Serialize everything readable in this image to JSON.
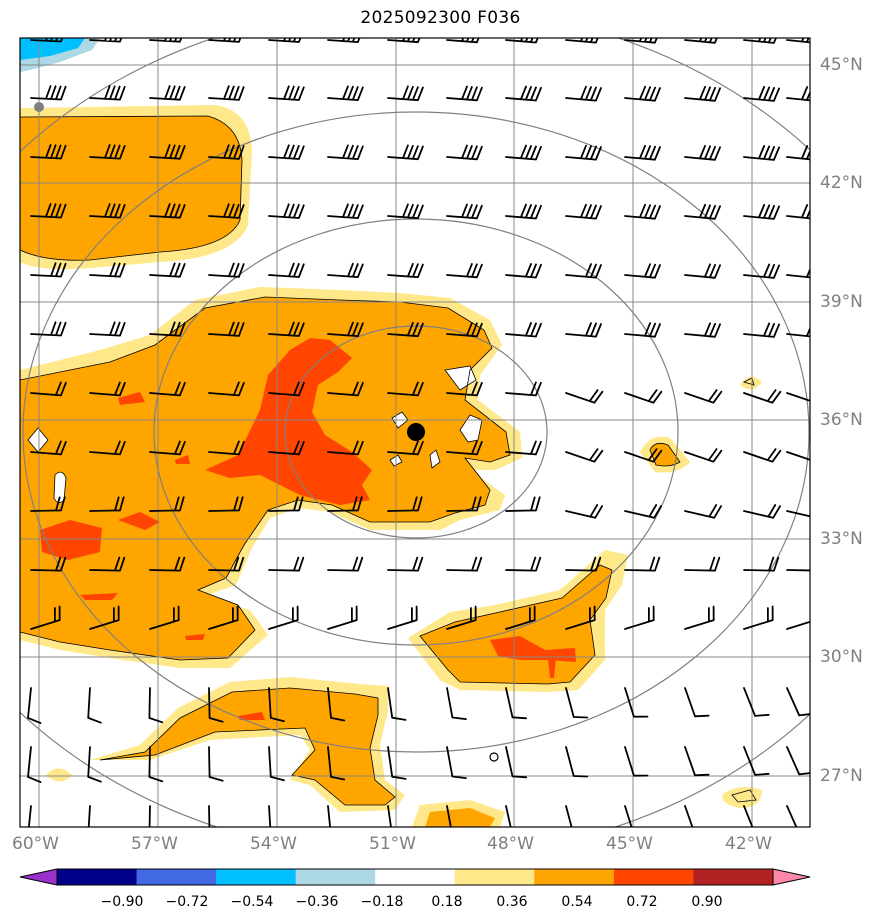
{
  "title": "2025092300 F036",
  "lat_labels": [
    "45°N",
    "42°N",
    "39°N",
    "36°N",
    "33°N",
    "30°N",
    "27°N"
  ],
  "lon_labels": [
    "60°W",
    "57°W",
    "54°W",
    "51°W",
    "48°W",
    "45°W",
    "42°W"
  ],
  "colorbar": {
    "ticks": [
      "−0.90",
      "−0.72",
      "−0.54",
      "−0.36",
      "−0.18",
      "0.18",
      "0.36",
      "0.54",
      "0.72",
      "0.90"
    ],
    "colors": [
      "#9932cc",
      "#00008b",
      "#4169e1",
      "#00bfff",
      "#add8e6",
      "#ffffff",
      "#ffe88a",
      "#ffa500",
      "#ff4500",
      "#b22222",
      "#ff88aa"
    ]
  },
  "legend_colors": {
    "light_fill": "#ffe88a",
    "mid_fill": "#ffa500",
    "high_fill": "#ff4500",
    "negative_fill": "#00bfff",
    "negative_light": "#add8e6",
    "grid": "#888888",
    "range_ring": "#808080",
    "storm_center": "#000000"
  },
  "marker": {
    "type": "storm-center",
    "lon": -50.4,
    "lat": 35.8
  }
}
